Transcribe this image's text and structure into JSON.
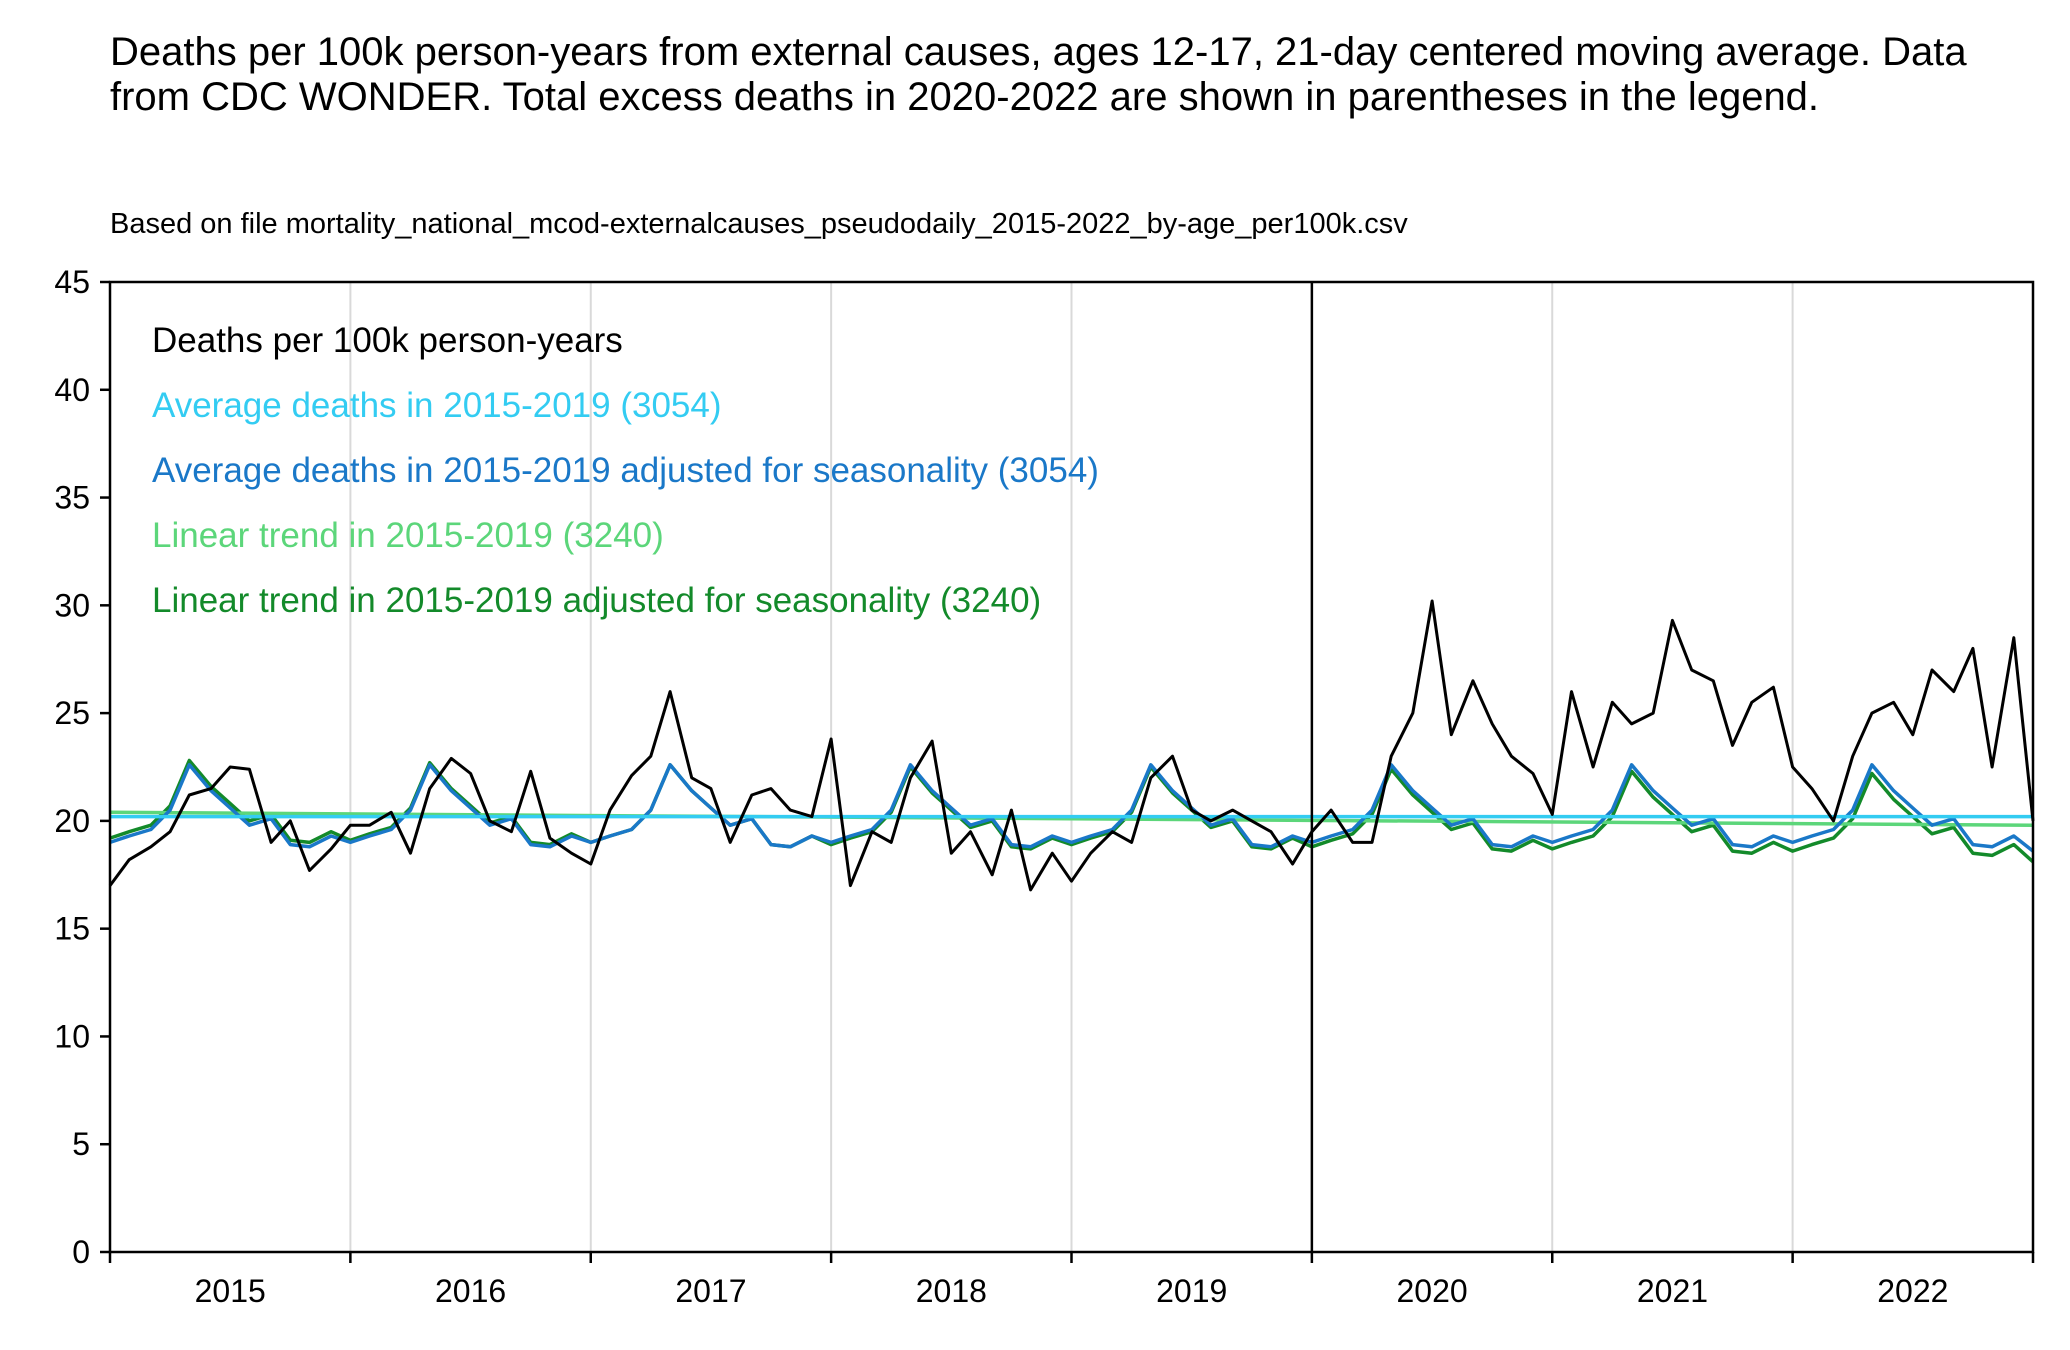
{
  "chart_data": {
    "type": "line",
    "title": "Deaths per 100k person-years from external causes, ages 12-17, 21-day centered moving average. Data from CDC WONDER. Total excess deaths in 2020-2022 are shown in parentheses in the legend.",
    "subtitle": "Based on file mortality_national_mcod-externalcauses_pseudodaily_2015-2022_by-age_per100k.csv",
    "xlabel": "",
    "ylabel": "",
    "xlim": [
      2015,
      2023
    ],
    "ylim": [
      0,
      45
    ],
    "y_ticks": [
      0,
      5,
      10,
      15,
      20,
      25,
      30,
      35,
      40,
      45
    ],
    "x_tick_labels": [
      "2015",
      "2016",
      "2017",
      "2018",
      "2019",
      "2020",
      "2021",
      "2022"
    ],
    "vertical_marker_x": 2020,
    "grid": "vertical year lines",
    "legend_placement": "top-left",
    "legend_title": "Deaths per 100k person-years",
    "series": [
      {
        "name": "Deaths per 100k person-years",
        "color": "#000000",
        "x": [
          2015.0,
          2015.08,
          2015.17,
          2015.25,
          2015.33,
          2015.42,
          2015.5,
          2015.58,
          2015.67,
          2015.75,
          2015.83,
          2015.92,
          2016.0,
          2016.08,
          2016.17,
          2016.25,
          2016.33,
          2016.42,
          2016.5,
          2016.58,
          2016.67,
          2016.75,
          2016.83,
          2016.92,
          2017.0,
          2017.08,
          2017.17,
          2017.25,
          2017.33,
          2017.42,
          2017.5,
          2017.58,
          2017.67,
          2017.75,
          2017.83,
          2017.92,
          2018.0,
          2018.08,
          2018.17,
          2018.25,
          2018.33,
          2018.42,
          2018.5,
          2018.58,
          2018.67,
          2018.75,
          2018.83,
          2018.92,
          2019.0,
          2019.08,
          2019.17,
          2019.25,
          2019.33,
          2019.42,
          2019.5,
          2019.58,
          2019.67,
          2019.75,
          2019.83,
          2019.92,
          2020.0,
          2020.08,
          2020.17,
          2020.25,
          2020.33,
          2020.42,
          2020.5,
          2020.58,
          2020.67,
          2020.75,
          2020.83,
          2020.92,
          2021.0,
          2021.08,
          2021.17,
          2021.25,
          2021.33,
          2021.42,
          2021.5,
          2021.58,
          2021.67,
          2021.75,
          2021.83,
          2021.92,
          2022.0,
          2022.08,
          2022.17,
          2022.25,
          2022.33,
          2022.42,
          2022.5,
          2022.58,
          2022.67,
          2022.75,
          2022.83,
          2022.92,
          2023.0
        ],
        "values": [
          17.0,
          18.2,
          18.8,
          19.5,
          21.2,
          21.5,
          22.5,
          22.4,
          19.0,
          20.0,
          17.7,
          18.7,
          19.8,
          19.8,
          20.4,
          18.5,
          21.5,
          22.9,
          22.2,
          20.0,
          19.5,
          22.3,
          19.2,
          18.5,
          18.0,
          20.5,
          22.1,
          23.0,
          26.0,
          22.0,
          21.5,
          19.0,
          21.2,
          21.5,
          20.5,
          20.2,
          23.8,
          17.0,
          19.5,
          19.0,
          22.0,
          23.7,
          18.5,
          19.5,
          17.5,
          20.5,
          16.8,
          18.5,
          17.2,
          18.5,
          19.5,
          19.0,
          22.0,
          23.0,
          20.5,
          20.0,
          20.5,
          20.0,
          19.5,
          18.0,
          19.5,
          20.5,
          19.0,
          19.0,
          23.0,
          25.0,
          30.2,
          24.0,
          26.5,
          24.5,
          23.0,
          22.2,
          20.3,
          26.0,
          22.5,
          25.5,
          24.5,
          25.0,
          29.3,
          27.0,
          26.5,
          23.5,
          25.5,
          26.2,
          22.5,
          21.5,
          20.0,
          23.0,
          25.0,
          25.5,
          24.0,
          27.0,
          26.0,
          28.0,
          22.5,
          28.5,
          20.0
        ]
      },
      {
        "name": "Average deaths in 2015-2019 (3054)",
        "color": "#33ccf2",
        "x": [
          2015.0,
          2023.0
        ],
        "values": [
          20.2,
          20.2
        ]
      },
      {
        "name": "Average deaths in 2015-2019 adjusted for seasonality (3054)",
        "color": "#1a78c8",
        "x": [
          2015.0,
          2015.08,
          2015.17,
          2015.25,
          2015.33,
          2015.42,
          2015.5,
          2015.58,
          2015.67,
          2015.75,
          2015.83,
          2015.92,
          2016.0,
          2016.08,
          2016.17,
          2016.25,
          2016.33,
          2016.42,
          2016.5,
          2016.58,
          2016.67,
          2016.75,
          2016.83,
          2016.92,
          2017.0,
          2017.08,
          2017.17,
          2017.25,
          2017.33,
          2017.42,
          2017.5,
          2017.58,
          2017.67,
          2017.75,
          2017.83,
          2017.92,
          2018.0,
          2018.08,
          2018.17,
          2018.25,
          2018.33,
          2018.42,
          2018.5,
          2018.58,
          2018.67,
          2018.75,
          2018.83,
          2018.92,
          2019.0,
          2019.08,
          2019.17,
          2019.25,
          2019.33,
          2019.42,
          2019.5,
          2019.58,
          2019.67,
          2019.75,
          2019.83,
          2019.92,
          2020.0,
          2020.08,
          2020.17,
          2020.25,
          2020.33,
          2020.42,
          2020.5,
          2020.58,
          2020.67,
          2020.75,
          2020.83,
          2020.92,
          2021.0,
          2021.08,
          2021.17,
          2021.25,
          2021.33,
          2021.42,
          2021.5,
          2021.58,
          2021.67,
          2021.75,
          2021.83,
          2021.92,
          2022.0,
          2022.08,
          2022.17,
          2022.25,
          2022.33,
          2022.42,
          2022.5,
          2022.58,
          2022.67,
          2022.75,
          2022.83,
          2022.92,
          2023.0
        ],
        "values": [
          19.0,
          19.3,
          19.6,
          20.5,
          22.6,
          21.4,
          20.6,
          19.8,
          20.1,
          18.9,
          18.8,
          19.3,
          19.0,
          19.3,
          19.6,
          20.5,
          22.6,
          21.4,
          20.6,
          19.8,
          20.1,
          18.9,
          18.8,
          19.3,
          19.0,
          19.3,
          19.6,
          20.5,
          22.6,
          21.4,
          20.6,
          19.8,
          20.1,
          18.9,
          18.8,
          19.3,
          19.0,
          19.3,
          19.6,
          20.5,
          22.6,
          21.4,
          20.6,
          19.8,
          20.1,
          18.9,
          18.8,
          19.3,
          19.0,
          19.3,
          19.6,
          20.5,
          22.6,
          21.4,
          20.6,
          19.8,
          20.1,
          18.9,
          18.8,
          19.3,
          19.0,
          19.3,
          19.6,
          20.5,
          22.6,
          21.4,
          20.6,
          19.8,
          20.1,
          18.9,
          18.8,
          19.3,
          19.0,
          19.3,
          19.6,
          20.5,
          22.6,
          21.4,
          20.6,
          19.8,
          20.1,
          18.9,
          18.8,
          19.3,
          19.0,
          19.3,
          19.6,
          20.5,
          22.6,
          21.4,
          20.6,
          19.8,
          20.1,
          18.9,
          18.8,
          19.3,
          18.6
        ]
      },
      {
        "name": "Linear trend in 2015-2019 (3240)",
        "color": "#5cd67a",
        "x": [
          2015.0,
          2023.0
        ],
        "values": [
          20.4,
          19.8
        ]
      },
      {
        "name": "Linear trend in 2015-2019 adjusted for seasonality (3240)",
        "color": "#138a2a",
        "x": [
          2015.0,
          2015.08,
          2015.17,
          2015.25,
          2015.33,
          2015.42,
          2015.5,
          2015.58,
          2015.67,
          2015.75,
          2015.83,
          2015.92,
          2016.0,
          2016.08,
          2016.17,
          2016.25,
          2016.33,
          2016.42,
          2016.5,
          2016.58,
          2016.67,
          2016.75,
          2016.83,
          2016.92,
          2017.0,
          2017.08,
          2017.17,
          2017.25,
          2017.33,
          2017.42,
          2017.5,
          2017.58,
          2017.67,
          2017.75,
          2017.83,
          2017.92,
          2018.0,
          2018.08,
          2018.17,
          2018.25,
          2018.33,
          2018.42,
          2018.5,
          2018.58,
          2018.67,
          2018.75,
          2018.83,
          2018.92,
          2019.0,
          2019.08,
          2019.17,
          2019.25,
          2019.33,
          2019.42,
          2019.5,
          2019.58,
          2019.67,
          2019.75,
          2019.83,
          2019.92,
          2020.0,
          2020.08,
          2020.17,
          2020.25,
          2020.33,
          2020.42,
          2020.5,
          2020.58,
          2020.67,
          2020.75,
          2020.83,
          2020.92,
          2021.0,
          2021.08,
          2021.17,
          2021.25,
          2021.33,
          2021.42,
          2021.5,
          2021.58,
          2021.67,
          2021.75,
          2021.83,
          2021.92,
          2022.0,
          2022.08,
          2022.17,
          2022.25,
          2022.33,
          2022.42,
          2022.5,
          2022.58,
          2022.67,
          2022.75,
          2022.83,
          2022.92,
          2023.0
        ],
        "values": [
          19.2,
          19.5,
          19.8,
          20.7,
          22.8,
          21.6,
          20.8,
          20.0,
          20.3,
          19.1,
          19.0,
          19.5,
          19.1,
          19.4,
          19.7,
          20.6,
          22.7,
          21.5,
          20.7,
          19.9,
          20.2,
          19.0,
          18.9,
          19.4,
          19.0,
          19.3,
          19.6,
          20.5,
          22.6,
          21.4,
          20.6,
          19.8,
          20.1,
          18.9,
          18.8,
          19.3,
          18.9,
          19.2,
          19.5,
          20.4,
          22.5,
          21.3,
          20.5,
          19.7,
          20.0,
          18.8,
          18.7,
          19.2,
          18.9,
          19.2,
          19.5,
          20.4,
          22.5,
          21.3,
          20.5,
          19.7,
          20.0,
          18.8,
          18.7,
          19.2,
          18.8,
          19.1,
          19.4,
          20.3,
          22.4,
          21.2,
          20.4,
          19.6,
          19.9,
          18.7,
          18.6,
          19.1,
          18.7,
          19.0,
          19.3,
          20.2,
          22.3,
          21.1,
          20.3,
          19.5,
          19.8,
          18.6,
          18.5,
          19.0,
          18.6,
          18.9,
          19.2,
          20.1,
          22.2,
          21.0,
          20.2,
          19.4,
          19.7,
          18.5,
          18.4,
          18.9,
          18.1
        ]
      }
    ]
  }
}
